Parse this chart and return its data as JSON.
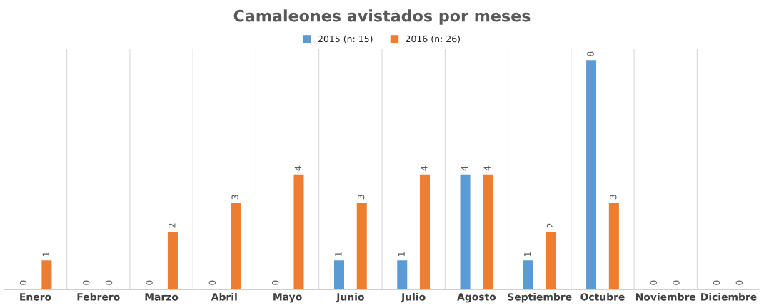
{
  "chart_data": {
    "type": "bar",
    "title": "Camaleones avistados por meses",
    "categories": [
      "Enero",
      "Febrero",
      "Marzo",
      "Abril",
      "Mayo",
      "Junio",
      "Julio",
      "Agosto",
      "Septiembre",
      "Octubre",
      "Noviembre",
      "Diciembre"
    ],
    "series": [
      {
        "name": "2015 (n: 15)",
        "color": "#5b9bd5",
        "values": [
          0,
          0,
          0,
          0,
          0,
          1,
          1,
          4,
          1,
          8,
          0,
          0
        ]
      },
      {
        "name": "2016 (n: 26)",
        "color": "#ed7d31",
        "values": [
          1,
          0,
          2,
          3,
          4,
          3,
          4,
          4,
          2,
          3,
          0,
          0
        ]
      }
    ],
    "data_labels": true,
    "grid": "x",
    "legend": "top",
    "tick_labels": "x"
  }
}
